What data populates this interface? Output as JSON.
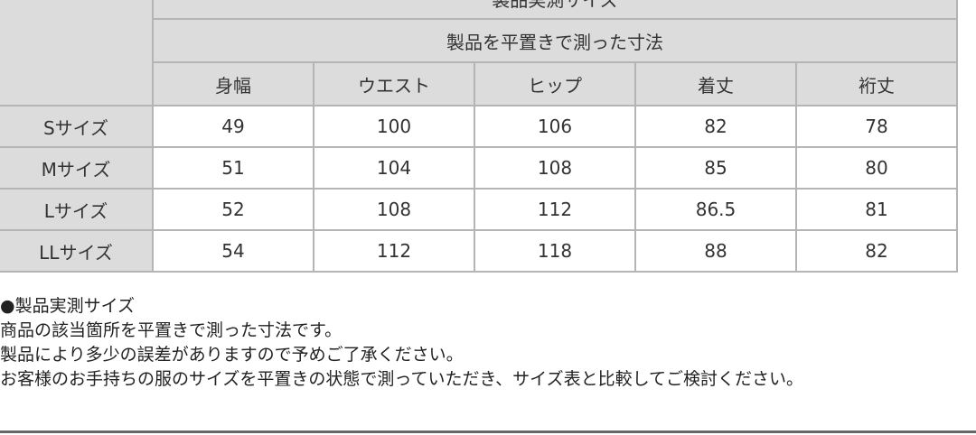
{
  "table": {
    "title": "製品実測サイズ",
    "subtitle": "製品を平置きで測った寸法",
    "columns": [
      "身幅",
      "ウエスト",
      "ヒップ",
      "着丈",
      "裄丈"
    ],
    "rows": [
      {
        "size": "Sサイズ",
        "values": [
          "49",
          "100",
          "106",
          "82",
          "78"
        ]
      },
      {
        "size": "Mサイズ",
        "values": [
          "51",
          "104",
          "108",
          "85",
          "80"
        ]
      },
      {
        "size": "Lサイズ",
        "values": [
          "52",
          "108",
          "112",
          "86.5",
          "81"
        ]
      },
      {
        "size": "LLサイズ",
        "values": [
          "54",
          "112",
          "118",
          "88",
          "82"
        ]
      }
    ]
  },
  "notes": [
    "●製品実測サイズ",
    "商品の該当箇所を平置きで測った寸法です。",
    "製品により多少の誤差がありますので予めご了承ください。",
    "お客様のお手持ちの服のサイズを平置きの状態で測っていただき、サイズ表と比較してご検討ください。"
  ]
}
